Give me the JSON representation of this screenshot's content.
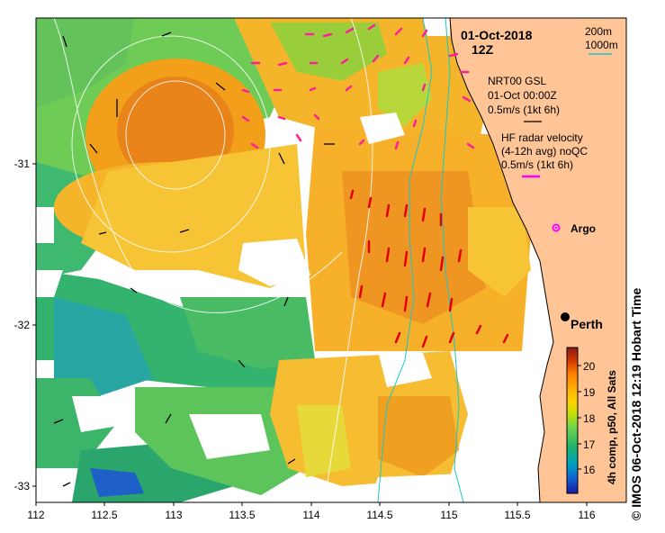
{
  "header": {
    "date": "01-Oct-2018",
    "time": "12Z"
  },
  "contour_legend": {
    "labels": [
      "200m",
      "1000m"
    ],
    "color": "#19c7c7"
  },
  "gsl_legend": {
    "lines": [
      "NRT00 GSL",
      "01-Oct 00:00Z",
      "0.5m/s (1kt 6h)"
    ],
    "arrow_color": "#000000"
  },
  "hf_legend": {
    "lines": [
      "HF radar velocity",
      "(4-12h avg) noQC",
      "0.5m/s (1kt 6h)"
    ],
    "arrow_color": "#ff00ff"
  },
  "argo": {
    "label": "Argo",
    "color": "#ff00ff"
  },
  "city": {
    "label": "Perth"
  },
  "x_axis": {
    "ticks": [
      "112",
      "112.5",
      "113",
      "113.5",
      "114",
      "114.5",
      "115",
      "115.5",
      "116"
    ]
  },
  "y_axis": {
    "ticks": [
      "-31",
      "-32",
      "-33"
    ]
  },
  "colorbar": {
    "ticks": [
      "20",
      "19",
      "18",
      "17",
      "16"
    ],
    "label": "4h comp, p50, All Sats",
    "colors": [
      "#8b1a1a",
      "#cc3300",
      "#ff7f00",
      "#ffb000",
      "#ffd000",
      "#c8e000",
      "#6ed34e",
      "#1fb36b",
      "#00a0c0",
      "#1060d0",
      "#1a1aa0"
    ]
  },
  "land_color": "#ffc596",
  "credit": "© IMOS 06-Oct-2018 12:19 Hobart Time"
}
